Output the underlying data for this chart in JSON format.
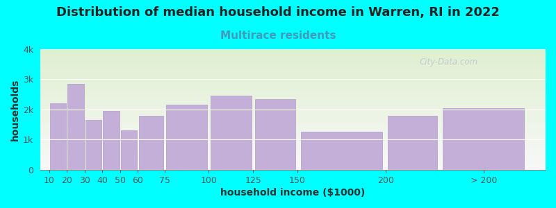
{
  "title": "Distribution of median household income in Warren, RI in 2022",
  "subtitle": "Multirace residents",
  "xlabel": "household income ($1000)",
  "ylabel": "households",
  "background_color": "#00FFFF",
  "plot_bg_gradient_top": "#dff0d0",
  "plot_bg_gradient_bottom": "#f8f8f8",
  "bar_color": "#c4afd8",
  "bar_edge_color": "#b09cc8",
  "categories": [
    "10",
    "20",
    "30",
    "40",
    "50",
    "60",
    "75",
    "100",
    "125",
    "150",
    "200",
    "> 200"
  ],
  "left_edges": [
    10,
    20,
    30,
    40,
    50,
    60,
    75,
    100,
    125,
    150,
    200,
    230
  ],
  "widths": [
    10,
    10,
    10,
    10,
    10,
    15,
    25,
    25,
    25,
    50,
    30,
    50
  ],
  "values": [
    2200,
    2850,
    1650,
    1950,
    1300,
    1800,
    2150,
    2450,
    2350,
    1250,
    1800,
    2050
  ],
  "ylim": [
    0,
    4000
  ],
  "yticks": [
    0,
    1000,
    2000,
    3000,
    4000
  ],
  "ytick_labels": [
    "0",
    "1k",
    "2k",
    "3k",
    "4k"
  ],
  "xtick_positions": [
    10,
    20,
    30,
    40,
    50,
    60,
    75,
    100,
    125,
    150,
    200,
    255
  ],
  "xtick_labels": [
    "10",
    "20",
    "30",
    "40",
    "50",
    "60",
    "75",
    "100",
    "125",
    "150",
    "200",
    "> 200"
  ],
  "xlim": [
    5,
    290
  ],
  "title_fontsize": 13,
  "subtitle_fontsize": 11,
  "subtitle_color": "#4499bb",
  "axis_label_fontsize": 10,
  "tick_fontsize": 9,
  "watermark": "City-Data.com"
}
